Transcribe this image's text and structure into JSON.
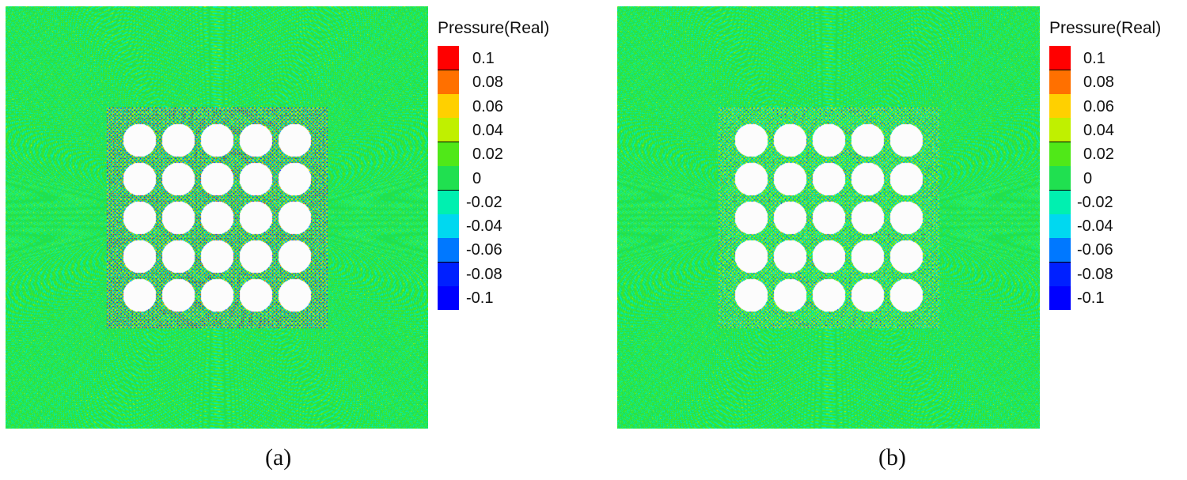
{
  "chart_data": [
    {
      "type": "heatmap",
      "panel_label": "(a)",
      "colorbar_title": "Pressure(Real)",
      "colorbar_ticks": [
        "0.1",
        "0.08",
        "0.06",
        "0.04",
        "0.02",
        "0",
        "-0.02",
        "-0.04",
        "-0.06",
        "-0.08",
        "-0.1"
      ],
      "range": [
        -0.1,
        0.1
      ],
      "scatterer_grid": [
        5,
        5
      ]
    },
    {
      "type": "heatmap",
      "panel_label": "(b)",
      "colorbar_title": "Pressure(Real)",
      "colorbar_ticks": [
        "0.1",
        "0.08",
        "0.06",
        "0.04",
        "0.02",
        "0",
        "-0.02",
        "-0.04",
        "-0.06",
        "-0.08",
        "-0.1"
      ],
      "range": [
        -0.1,
        0.1
      ],
      "scatterer_grid": [
        5,
        5
      ]
    }
  ],
  "colors": [
    "#ff0000",
    "#ff7000",
    "#ffd000",
    "#c0f000",
    "#50e818",
    "#20e050",
    "#00f0b0",
    "#00d8f0",
    "#0078ff",
    "#0020ff",
    "#0000ff"
  ]
}
